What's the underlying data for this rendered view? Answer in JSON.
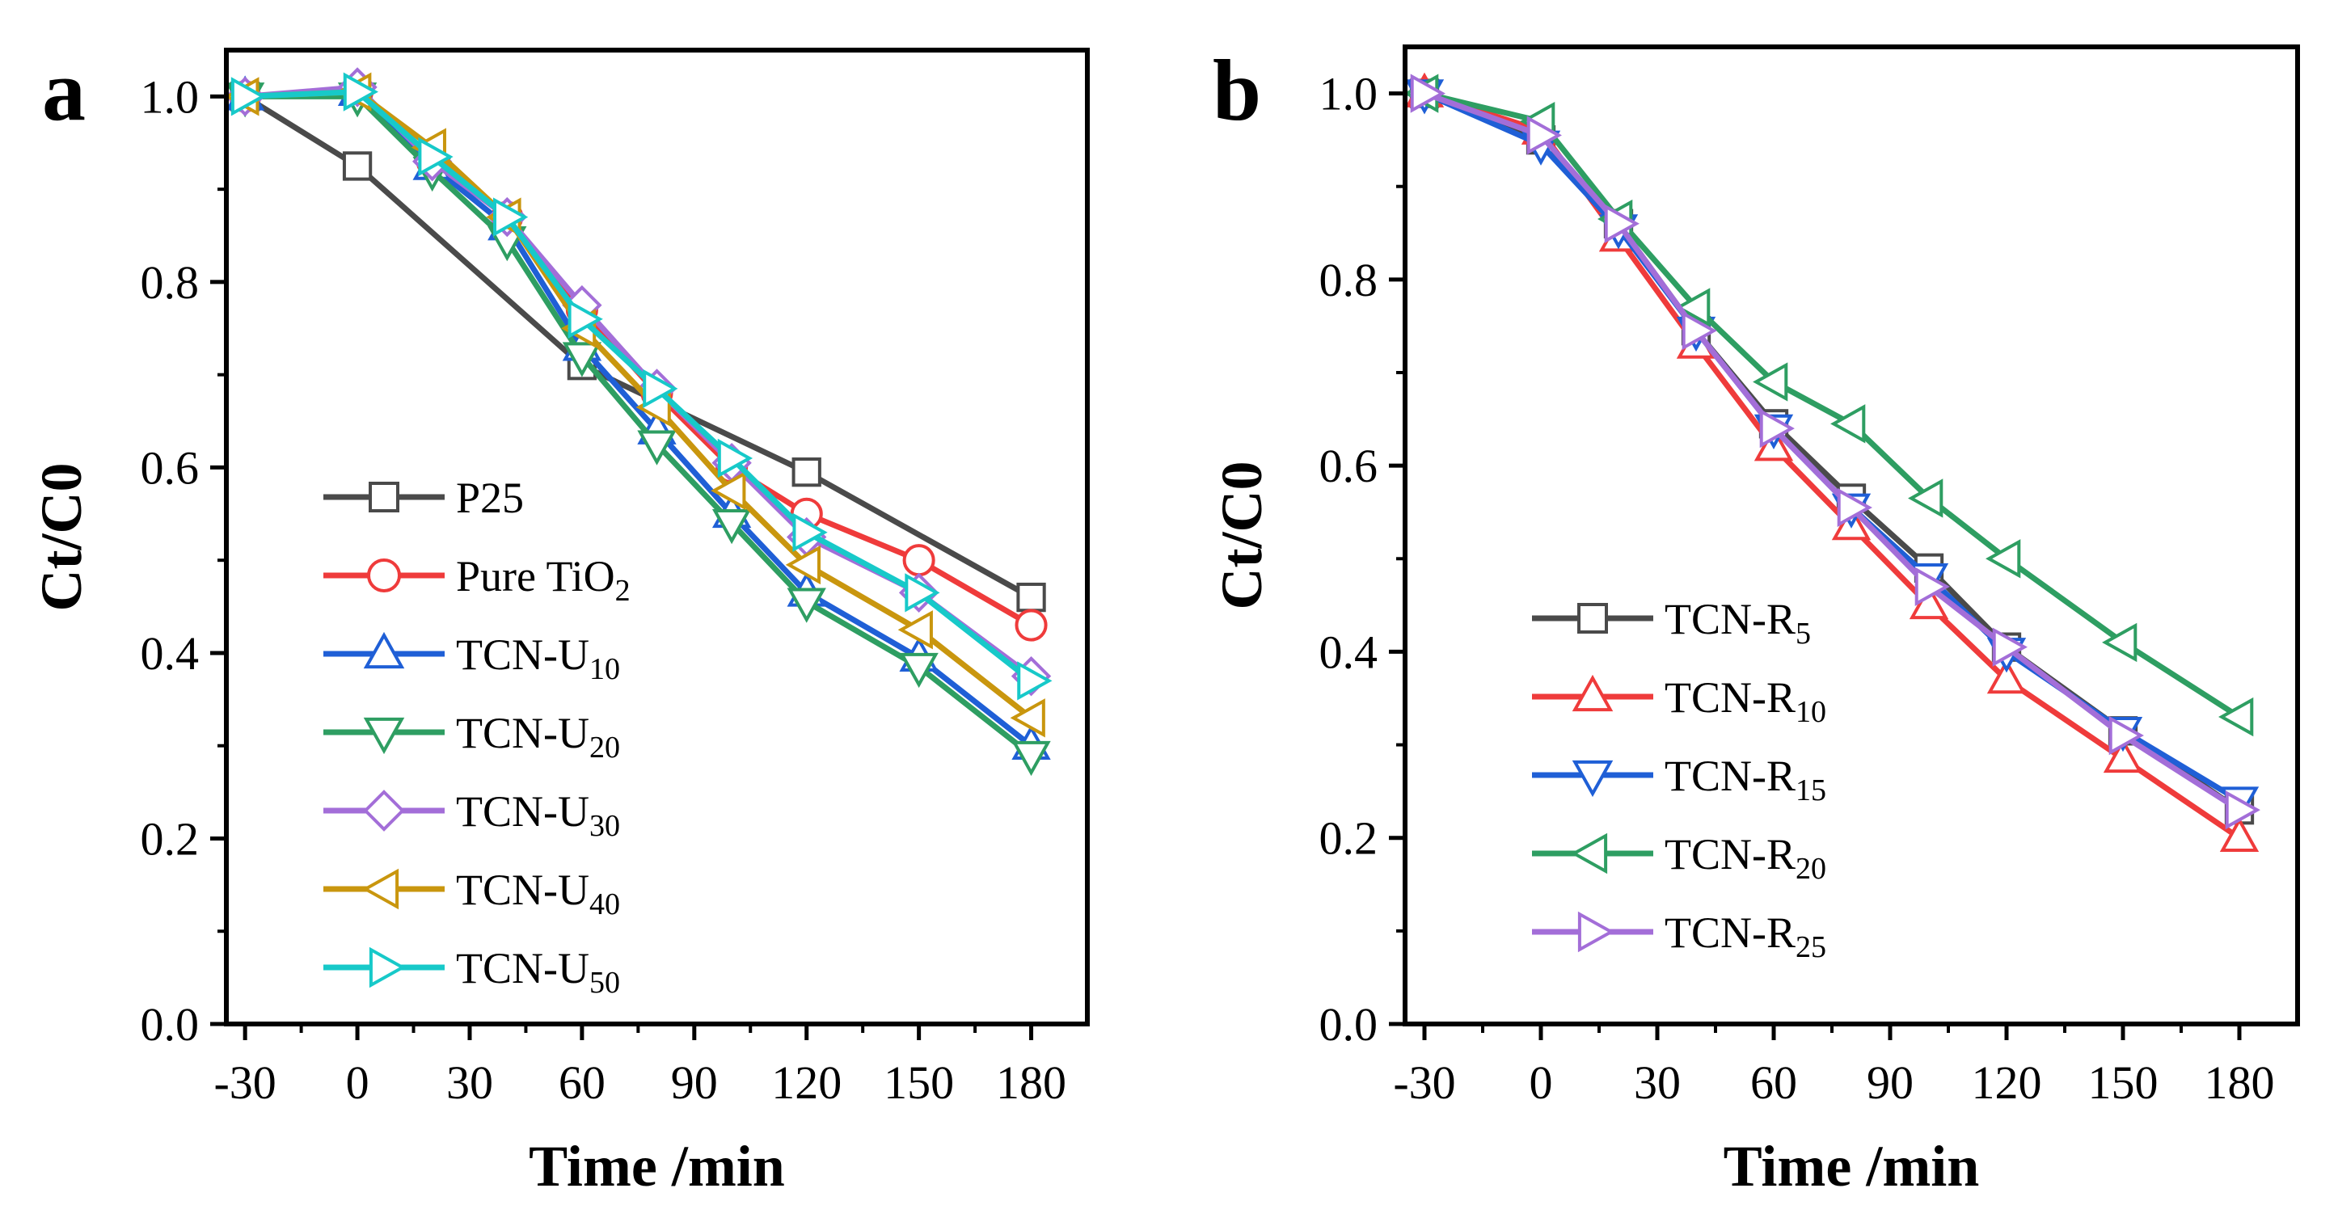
{
  "chart_data": [
    {
      "panel_label": "a",
      "type": "line",
      "xlabel": "Time /min",
      "ylabel": "Ct/C0",
      "xlim": [
        -35,
        195
      ],
      "ylim": [
        0.0,
        1.05
      ],
      "xticks": [
        "-30",
        "0",
        "30",
        "60",
        "90",
        "120",
        "150",
        "180"
      ],
      "yticks": [
        "0.0",
        "0.2",
        "0.4",
        "0.6",
        "0.8",
        "1.0"
      ],
      "legend_position": "lower-left",
      "x": [
        -30,
        0,
        20,
        40,
        60,
        80,
        100,
        120,
        150,
        180
      ],
      "series": [
        {
          "name": "P25",
          "sub": "",
          "color": "#4a4a4a",
          "marker": "square",
          "x": [
            -30,
            0,
            60,
            120,
            180
          ],
          "values": [
            1.0,
            0.925,
            0.71,
            0.595,
            0.46
          ]
        },
        {
          "name": "Pure TiO",
          "sub": "2",
          "color": "#ef3b3b",
          "marker": "circle",
          "x": [
            -30,
            0,
            20,
            40,
            60,
            80,
            100,
            120,
            150,
            180
          ],
          "values": [
            1.0,
            1.005,
            0.93,
            0.87,
            0.77,
            0.68,
            0.6,
            0.55,
            0.5,
            0.43
          ]
        },
        {
          "name": "TCN-U",
          "sub": "10",
          "color": "#1f5fd6",
          "marker": "triangle-up",
          "x": [
            -30,
            0,
            20,
            40,
            60,
            80,
            100,
            120,
            150,
            180
          ],
          "values": [
            1.0,
            1.005,
            0.925,
            0.86,
            0.73,
            0.64,
            0.55,
            0.465,
            0.395,
            0.3
          ]
        },
        {
          "name": "TCN-U",
          "sub": "20",
          "color": "#2e9e62",
          "marker": "triangle-down",
          "x": [
            -30,
            0,
            20,
            40,
            60,
            80,
            100,
            120,
            150,
            180
          ],
          "values": [
            1.0,
            1.0,
            0.92,
            0.845,
            0.72,
            0.625,
            0.54,
            0.455,
            0.385,
            0.29
          ]
        },
        {
          "name": "TCN-U",
          "sub": "30",
          "color": "#a36ed8",
          "marker": "diamond",
          "x": [
            -30,
            0,
            20,
            40,
            60,
            80,
            100,
            120,
            150,
            180
          ],
          "values": [
            1.0,
            1.01,
            0.93,
            0.87,
            0.775,
            0.685,
            0.605,
            0.525,
            0.465,
            0.375
          ]
        },
        {
          "name": "TCN-U",
          "sub": "40",
          "color": "#c9960e",
          "marker": "triangle-left",
          "x": [
            -30,
            0,
            20,
            40,
            60,
            80,
            100,
            120,
            150,
            180
          ],
          "values": [
            1.0,
            1.005,
            0.945,
            0.87,
            0.75,
            0.665,
            0.575,
            0.495,
            0.425,
            0.33
          ]
        },
        {
          "name": "TCN-U",
          "sub": "50",
          "color": "#17c9c9",
          "marker": "triangle-right",
          "x": [
            -30,
            0,
            20,
            40,
            60,
            80,
            100,
            120,
            150,
            180
          ],
          "values": [
            1.0,
            1.005,
            0.935,
            0.87,
            0.76,
            0.685,
            0.61,
            0.53,
            0.465,
            0.37
          ]
        }
      ]
    },
    {
      "panel_label": "b",
      "type": "line",
      "xlabel": "Time /min",
      "ylabel": "Ct/C0",
      "xlim": [
        -35,
        195
      ],
      "ylim": [
        0.0,
        1.05
      ],
      "xticks": [
        "-30",
        "0",
        "30",
        "60",
        "90",
        "120",
        "150",
        "180"
      ],
      "yticks": [
        "0.0",
        "0.2",
        "0.4",
        "0.6",
        "0.8",
        "1.0"
      ],
      "legend_position": "lower-left",
      "series": [
        {
          "name": "TCN-R",
          "sub": "5",
          "color": "#4a4a4a",
          "marker": "square",
          "x": [
            -30,
            0,
            20,
            40,
            60,
            80,
            100,
            120,
            150,
            180
          ],
          "values": [
            1.0,
            0.95,
            0.86,
            0.745,
            0.645,
            0.565,
            0.49,
            0.405,
            0.315,
            0.23
          ]
        },
        {
          "name": "TCN-R",
          "sub": "10",
          "color": "#ef3b3b",
          "marker": "triangle-up",
          "x": [
            -30,
            0,
            20,
            40,
            60,
            80,
            100,
            120,
            150,
            180
          ],
          "values": [
            1.0,
            0.96,
            0.845,
            0.73,
            0.62,
            0.535,
            0.45,
            0.37,
            0.285,
            0.2
          ]
        },
        {
          "name": "TCN-R",
          "sub": "15",
          "color": "#1f5fd6",
          "marker": "triangle-down",
          "x": [
            -30,
            0,
            20,
            40,
            60,
            80,
            100,
            120,
            150,
            180
          ],
          "values": [
            1.0,
            0.945,
            0.855,
            0.745,
            0.64,
            0.555,
            0.48,
            0.4,
            0.315,
            0.24
          ]
        },
        {
          "name": "TCN-R",
          "sub": "20",
          "color": "#2e9e62",
          "marker": "triangle-left",
          "x": [
            -30,
            0,
            20,
            40,
            60,
            80,
            100,
            120,
            150,
            180
          ],
          "values": [
            1.0,
            0.97,
            0.865,
            0.77,
            0.69,
            0.645,
            0.565,
            0.5,
            0.41,
            0.33
          ]
        },
        {
          "name": "TCN-R",
          "sub": "25",
          "color": "#a36ed8",
          "marker": "triangle-right",
          "x": [
            -30,
            0,
            20,
            40,
            60,
            80,
            100,
            120,
            150,
            180
          ],
          "values": [
            1.0,
            0.955,
            0.86,
            0.745,
            0.64,
            0.555,
            0.47,
            0.405,
            0.31,
            0.23
          ]
        }
      ]
    }
  ]
}
